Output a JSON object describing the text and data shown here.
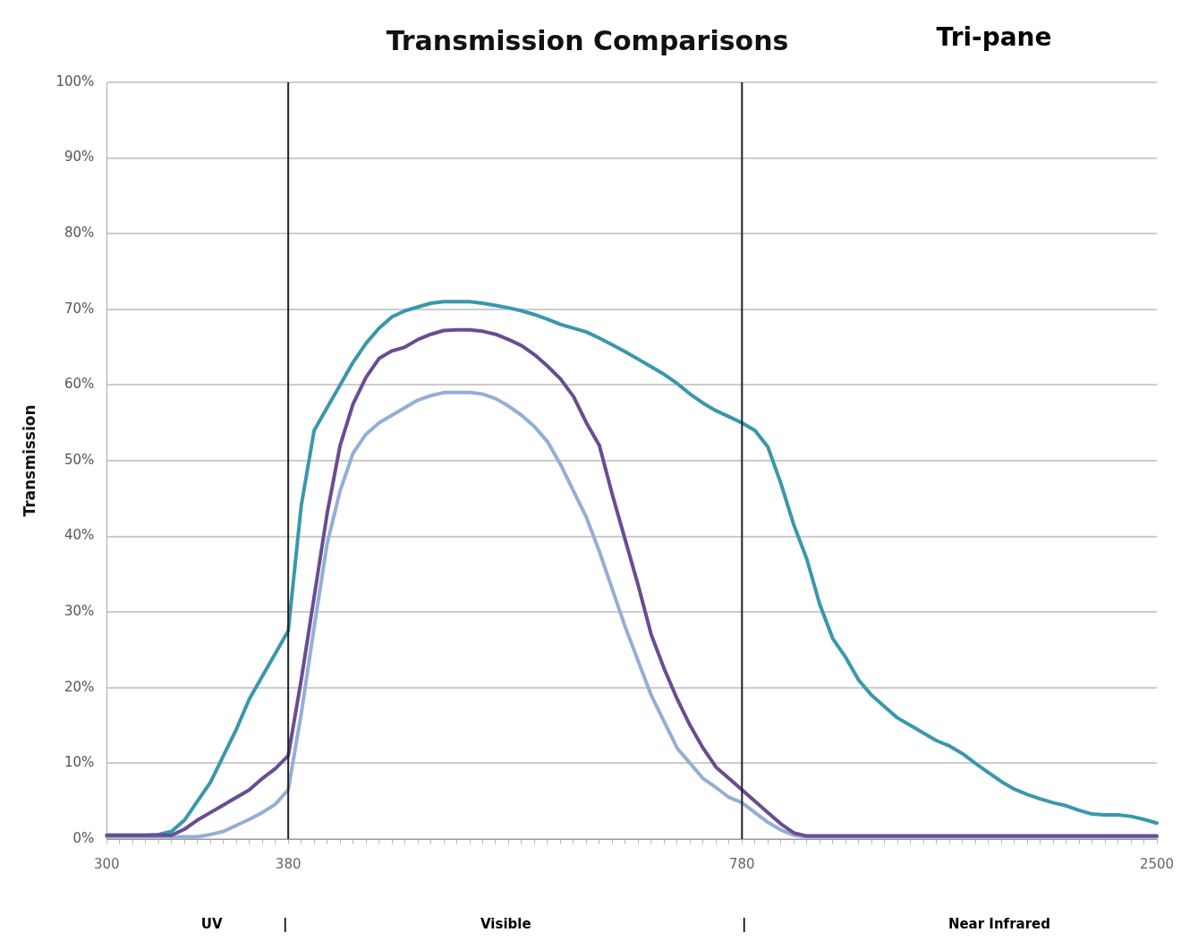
{
  "chart_data": {
    "type": "line",
    "title": "Transmission Comparisons",
    "ylabel": "Transmission",
    "annotations": [
      "Tri-pane",
      "UV",
      "|",
      "Visible",
      "|",
      "Near Infrared"
    ],
    "categories": [
      "300",
      null,
      null,
      null,
      null,
      null,
      null,
      null,
      null,
      null,
      null,
      null,
      null,
      null,
      "380",
      null,
      null,
      null,
      null,
      null,
      null,
      null,
      null,
      null,
      null,
      null,
      null,
      null,
      null,
      null,
      null,
      null,
      null,
      null,
      null,
      null,
      null,
      null,
      null,
      null,
      null,
      null,
      null,
      null,
      null,
      null,
      null,
      null,
      null,
      "780",
      null,
      null,
      null,
      null,
      null,
      null,
      null,
      null,
      null,
      null,
      null,
      null,
      null,
      null,
      null,
      null,
      null,
      null,
      null,
      null,
      null,
      null,
      null,
      null,
      null,
      null,
      null,
      null,
      null,
      null,
      null,
      "2500"
    ],
    "series": [
      {
        "color": "#6a4c93",
        "values": [
          0.5,
          0.5,
          0.5,
          0.5,
          0.5,
          0.5,
          1.3,
          2.5,
          3.5,
          4.5,
          5.5,
          6.5,
          8,
          9.3,
          11,
          21,
          32,
          43,
          52,
          57.5,
          61,
          63.5,
          64.5,
          65,
          66,
          66.7,
          67.2,
          67.3,
          67.3,
          67.1,
          66.7,
          66,
          65.2,
          64,
          62.5,
          60.8,
          58.5,
          55,
          52,
          45.5,
          39.5,
          33.5,
          27,
          22.5,
          18.5,
          15,
          12,
          9.5,
          8,
          6.5,
          5,
          3.5,
          2,
          0.8,
          0.4,
          0.4,
          0.4,
          0.4,
          0.4,
          0.4,
          0.4,
          0.4,
          0.4,
          0.4,
          0.4,
          0.4,
          0.4,
          0.4,
          0.4,
          0.4,
          0.4,
          0.4,
          0.4,
          0.4,
          0.4,
          0.4,
          0.4,
          0.4,
          0.4,
          0.4,
          0.4,
          0.4
        ]
      },
      {
        "color": "#3a97ad",
        "values": [
          0.5,
          0.5,
          0.5,
          0.5,
          0.6,
          1,
          2.5,
          5,
          7.5,
          11,
          14.5,
          18.5,
          21.5,
          24.5,
          27.5,
          44,
          54,
          57,
          60,
          63,
          65.5,
          67.5,
          69,
          69.8,
          70.3,
          70.8,
          71,
          71,
          71,
          70.8,
          70.5,
          70.2,
          69.8,
          69.3,
          68.7,
          68,
          67.5,
          67,
          66.2,
          65.3,
          64.4,
          63.4,
          62.4,
          61.4,
          60.2,
          58.8,
          57.6,
          56.6,
          55.8,
          55,
          54,
          51.8,
          47,
          41.5,
          37,
          31,
          26.5,
          24,
          21,
          19,
          17.5,
          16,
          15,
          14,
          13,
          12.3,
          11.3,
          10,
          8.8,
          7.6,
          6.6,
          5.9,
          5.3,
          4.8,
          4.4,
          3.8,
          3.3,
          3.2,
          3.2,
          3,
          2.6,
          2.1
        ]
      },
      {
        "color": "#94aed6",
        "values": [
          0.3,
          0.3,
          0.3,
          0.3,
          0.3,
          0.3,
          0.3,
          0.3,
          0.6,
          1,
          1.8,
          2.6,
          3.5,
          4.6,
          6.5,
          16.5,
          28,
          39,
          46,
          51,
          53.5,
          55,
          56,
          57,
          58,
          58.6,
          59,
          59,
          59,
          58.8,
          58.2,
          57.2,
          56,
          54.5,
          52.5,
          49.5,
          46,
          42.5,
          38,
          33,
          28,
          23.5,
          19,
          15.5,
          12,
          10,
          8,
          6.8,
          5.5,
          4.8,
          3.5,
          2.2,
          1.2,
          0.5,
          0.3,
          0.3,
          0.3,
          0.3,
          0.3,
          0.3,
          0.3,
          0.3,
          0.3,
          0.3,
          0.3,
          0.3,
          0.3,
          0.3,
          0.3,
          0.3,
          0.3,
          0.3,
          0.3,
          0.3,
          0.3,
          0.3,
          0.3,
          0.3,
          0.3,
          0.3,
          0.3,
          0.3
        ]
      }
    ],
    "ylim": [
      0,
      100
    ],
    "yticks": [
      {
        "value": 0,
        "label": "0%"
      },
      {
        "value": 10,
        "label": "10%"
      },
      {
        "value": 20,
        "label": "20%"
      },
      {
        "value": 30,
        "label": "30%"
      },
      {
        "value": 40,
        "label": "40%"
      },
      {
        "value": 50,
        "label": "50%"
      },
      {
        "value": 60,
        "label": "60%"
      },
      {
        "value": 70,
        "label": "70%"
      },
      {
        "value": 80,
        "label": "80%"
      },
      {
        "value": 90,
        "label": "90%"
      },
      {
        "value": 100,
        "label": "100%"
      }
    ],
    "ref_lines": [
      {
        "axis": "x",
        "value": "380",
        "color": "#222222"
      },
      {
        "axis": "x",
        "value": "780",
        "color": "#222222"
      }
    ],
    "grid": "y",
    "legend": false,
    "line_style": "solid",
    "marker": "none"
  }
}
